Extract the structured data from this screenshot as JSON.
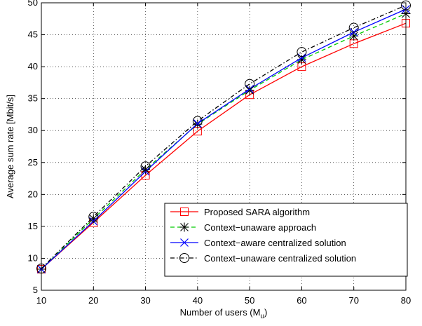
{
  "chart_data": {
    "type": "line",
    "title": "",
    "xlabel": "Number of users (M",
    "xlabel_sub": "u",
    "xlabel_close": ")",
    "ylabel": "Average sum rate [Mbit/s]",
    "xlim": [
      10,
      80
    ],
    "ylim": [
      5,
      50
    ],
    "xticks": [
      "10",
      "20",
      "30",
      "40",
      "50",
      "60",
      "70",
      "80"
    ],
    "yticks": [
      "5",
      "10",
      "15",
      "20",
      "25",
      "30",
      "35",
      "40",
      "45",
      "50"
    ],
    "grid": true,
    "legend_position": "bottom-right",
    "x": [
      10,
      20,
      30,
      40,
      50,
      60,
      70,
      80
    ],
    "series": [
      {
        "name": "Proposed SARA algorithm",
        "color": "#ff0000",
        "dash": "solid",
        "marker": "square",
        "values": [
          8.3,
          15.6,
          23.0,
          29.9,
          35.6,
          40.0,
          43.6,
          46.8
        ]
      },
      {
        "name": "Context−unaware approach",
        "color": "#00cc00",
        "dash": "dashed",
        "marker": "asterisk",
        "values": [
          8.3,
          16.2,
          23.9,
          31.0,
          36.3,
          41.1,
          44.8,
          48.3
        ]
      },
      {
        "name": "Context−aware centralized solution",
        "color": "#0000ff",
        "dash": "solid",
        "marker": "x",
        "values": [
          8.3,
          15.8,
          23.6,
          31.1,
          36.5,
          41.4,
          45.4,
          49.0
        ]
      },
      {
        "name": "Context−unaware centralized solution",
        "color": "#000000",
        "dash": "dashdot",
        "marker": "circle",
        "values": [
          8.4,
          16.5,
          24.4,
          31.5,
          37.3,
          42.3,
          46.1,
          49.6
        ]
      }
    ]
  }
}
